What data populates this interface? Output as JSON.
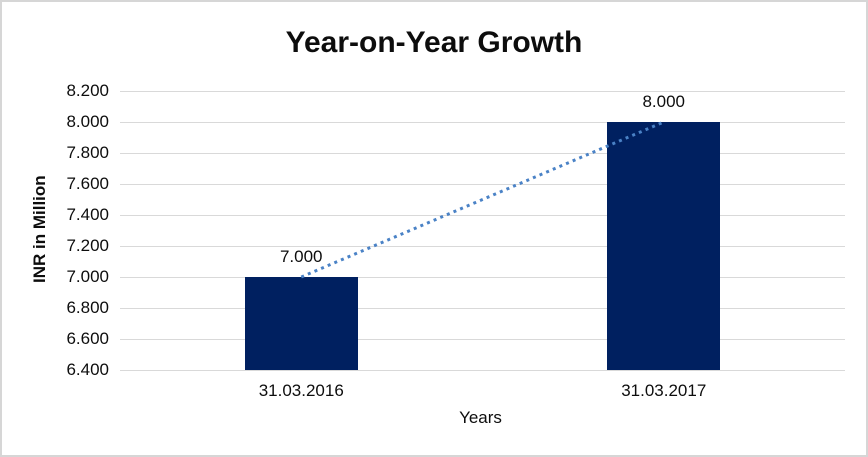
{
  "chart_data": {
    "type": "bar",
    "title": "Year-on-Year Growth",
    "xlabel": "Years",
    "ylabel": "INR in Million",
    "categories": [
      "31.03.2016",
      "31.03.2017"
    ],
    "values": [
      7000,
      8000
    ],
    "value_labels": [
      "7.000",
      "8.000"
    ],
    "ylim": [
      6400,
      8200
    ],
    "yticks": [
      {
        "value": 6400,
        "label": "6.400"
      },
      {
        "value": 6600,
        "label": "6.600"
      },
      {
        "value": 6800,
        "label": "6.800"
      },
      {
        "value": 7000,
        "label": "7.000"
      },
      {
        "value": 7200,
        "label": "7.200"
      },
      {
        "value": 7400,
        "label": "7.400"
      },
      {
        "value": 7600,
        "label": "7.600"
      },
      {
        "value": 7800,
        "label": "7.800"
      },
      {
        "value": 8000,
        "label": "8.000"
      },
      {
        "value": 8200,
        "label": "8.200"
      }
    ],
    "grid": true,
    "legend": false,
    "bar_color": "#002060",
    "gridline_color": "#d9d9d9",
    "trendline": {
      "style": "dotted",
      "color": "#4a82c6",
      "connects": "bar tops (7.000 to 8.000)"
    }
  }
}
